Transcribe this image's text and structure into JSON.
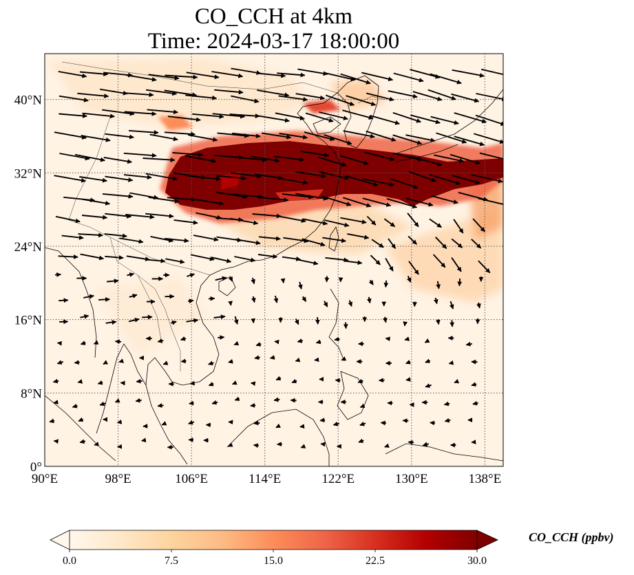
{
  "title": {
    "line1": "CO_CCH at 4km",
    "line2": "Time: 2024-03-17 18:00:00"
  },
  "map": {
    "projection": "PlateCarree",
    "extent": {
      "lon": [
        90,
        140
      ],
      "lat": [
        0,
        45
      ]
    },
    "xticks": [
      {
        "value": 90,
        "label": "90°E"
      },
      {
        "value": 98,
        "label": "98°E"
      },
      {
        "value": 106,
        "label": "106°E"
      },
      {
        "value": 114,
        "label": "114°E"
      },
      {
        "value": 122,
        "label": "122°E"
      },
      {
        "value": 130,
        "label": "130°E"
      },
      {
        "value": 138,
        "label": "138°E"
      }
    ],
    "yticks": [
      {
        "value": 40,
        "label": "40°N"
      },
      {
        "value": 32,
        "label": "32°N"
      },
      {
        "value": 24,
        "label": "24°N"
      },
      {
        "value": 16,
        "label": "16°N"
      },
      {
        "value": 8,
        "label": "8°N"
      },
      {
        "value": 0,
        "label": "0°"
      }
    ],
    "gridlines": true,
    "plume_color": "#7f0000",
    "vectors": "wind arrows at 4km, strong westerlies north of ~22°N, weak easterlies in the south"
  },
  "colorbar": {
    "label": "CO_CCH (ppbv)",
    "min": 0.0,
    "max": 30.0,
    "extend": "both",
    "colormap": "OrRd",
    "ticks": [
      "0.0",
      "7.5",
      "15.0",
      "22.5",
      "30.0"
    ]
  }
}
